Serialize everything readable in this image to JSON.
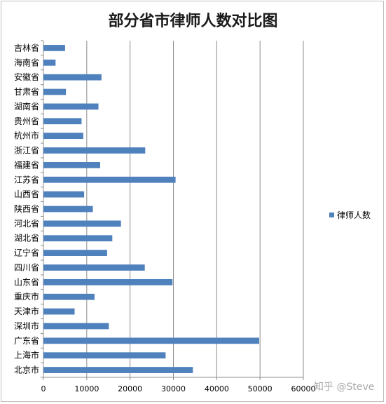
{
  "chart_data": {
    "type": "bar",
    "orientation": "horizontal",
    "title": "部分省市律师人数对比图",
    "xlabel": "",
    "ylabel": "",
    "xlim": [
      0,
      60000
    ],
    "xticks": [
      0,
      10000,
      20000,
      30000,
      40000,
      50000,
      60000
    ],
    "grid": true,
    "legend": "right",
    "bar_color": "#4f81bd",
    "categories": [
      "吉林省",
      "海南省",
      "安徽省",
      "甘肃省",
      "湖南省",
      "贵州省",
      "杭州市",
      "浙江省",
      "福建省",
      "江苏省",
      "山西省",
      "陕西省",
      "河北省",
      "湖北省",
      "辽宁省",
      "四川省",
      "山东省",
      "重庆市",
      "天津市",
      "深圳市",
      "广东省",
      "上海市",
      "北京市"
    ],
    "series": [
      {
        "name": "律师人数",
        "values": [
          5000,
          2800,
          13400,
          5200,
          12700,
          8800,
          9200,
          23500,
          13100,
          30500,
          9400,
          11400,
          17900,
          15900,
          14700,
          23400,
          29800,
          11800,
          7200,
          15100,
          49800,
          28200,
          34500
        ]
      }
    ]
  },
  "watermark": "知乎 @Steve"
}
